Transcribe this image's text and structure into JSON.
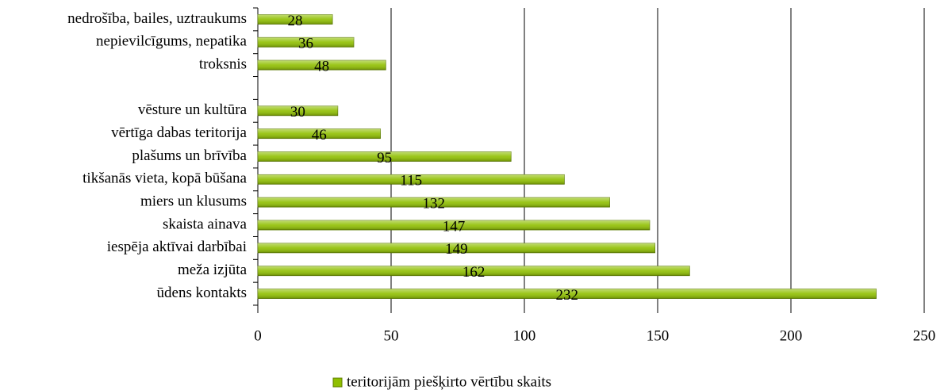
{
  "chart_data": {
    "type": "bar",
    "orientation": "horizontal",
    "categories": [
      "nedrošība, bailes, uztraukums",
      "nepievilcīgums, nepatika",
      "troksnis",
      null,
      "vēsture un kultūra",
      "vērtīga dabas teritorija",
      "plašums un brīvība",
      "tikšanās vieta, kopā būšana",
      "miers un klusums",
      "skaista ainava",
      "iespēja aktīvai darbībai",
      "meža izjūta",
      "ūdens kontakts"
    ],
    "series": [
      {
        "name": "teritorijām piešķirto vērtību skaits",
        "color": "#8fbf00",
        "values": [
          28,
          36,
          48,
          null,
          30,
          46,
          95,
          115,
          132,
          147,
          149,
          162,
          232
        ]
      }
    ],
    "xlim": [
      0,
      250
    ],
    "xticks": [
      0,
      50,
      100,
      150,
      200,
      250
    ],
    "grid": true,
    "legend": "bottom"
  }
}
